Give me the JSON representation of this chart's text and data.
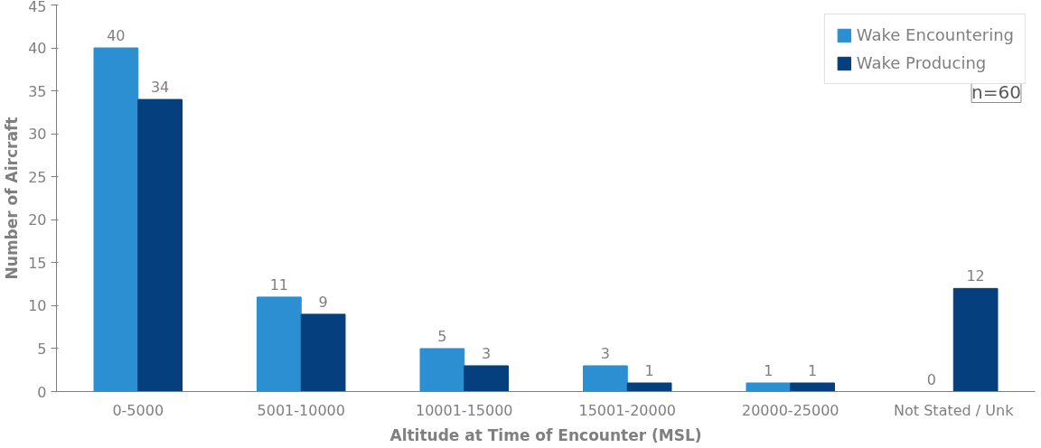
{
  "chart_data": {
    "type": "bar",
    "xlabel": "Altitude at Time of Encounter (MSL)",
    "ylabel": "Number of Aircraft",
    "categories": [
      "0-5000",
      "5001-10000",
      "10001-15000",
      "15001-20000",
      "20000-25000",
      "Not Stated / Unk"
    ],
    "series": [
      {
        "name": "Wake Encountering",
        "color": "#2b8fd2",
        "values": [
          40,
          11,
          5,
          3,
          1,
          0
        ]
      },
      {
        "name": "Wake Producing",
        "color": "#053f7e",
        "values": [
          34,
          9,
          3,
          1,
          1,
          12
        ]
      }
    ],
    "ylim": [
      0,
      45
    ],
    "yticks": [
      0,
      5,
      10,
      15,
      20,
      25,
      30,
      35,
      40,
      45
    ],
    "data_labels": true,
    "grid": false,
    "legend": "top right",
    "annotations": [
      "n=60"
    ]
  }
}
